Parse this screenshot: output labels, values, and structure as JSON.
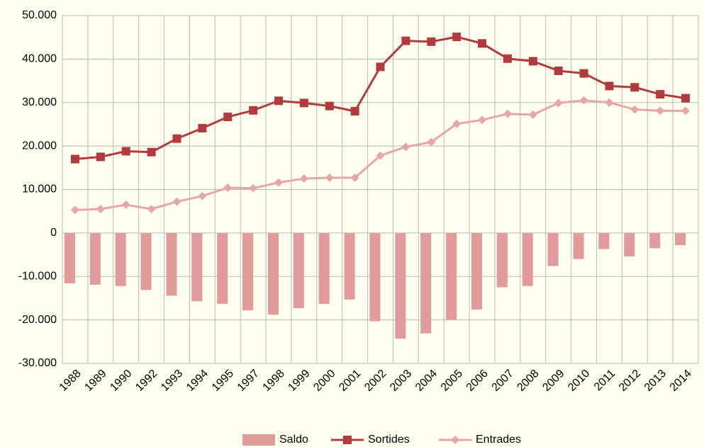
{
  "chart_data": {
    "type": "combo",
    "categories": [
      "1988",
      "1989",
      "1990",
      "1992",
      "1993",
      "1994",
      "1995",
      "1997",
      "1998",
      "1999",
      "2000",
      "2001",
      "2002",
      "2003",
      "2004",
      "2005",
      "2006",
      "2007",
      "2008",
      "2009",
      "2010",
      "2011",
      "2012",
      "2013",
      "2014"
    ],
    "series": [
      {
        "name": "Saldo",
        "type": "bar",
        "color": "#e29b9b",
        "values": [
          -11600,
          -11900,
          -12200,
          -13100,
          -14400,
          -15700,
          -16300,
          -17800,
          -18800,
          -17300,
          -16300,
          -15300,
          -20300,
          -24300,
          -23100,
          -19900,
          -17600,
          -12500,
          -12200,
          -7600,
          -6000,
          -3700,
          -5400,
          -3500,
          -2800
        ]
      },
      {
        "name": "Sortides",
        "type": "line",
        "marker": "square",
        "color": "#b23a3c",
        "values": [
          17000,
          17500,
          18800,
          18600,
          21700,
          24100,
          26700,
          28200,
          30400,
          29900,
          29200,
          28000,
          38200,
          44200,
          44000,
          45100,
          43600,
          40100,
          39500,
          37300,
          36700,
          33800,
          33500,
          31900,
          31000
        ]
      },
      {
        "name": "Entrades",
        "type": "line",
        "marker": "diamond",
        "color": "#e8a5a5",
        "values": [
          5300,
          5500,
          6500,
          5500,
          7200,
          8500,
          10400,
          10300,
          11600,
          12500,
          12700,
          12700,
          17800,
          19800,
          20900,
          25100,
          26000,
          27400,
          27200,
          29900,
          30500,
          30000,
          28400,
          28100,
          28100
        ]
      }
    ],
    "ylim": [
      -30000,
      50000
    ],
    "yticks": [
      {
        "value": -30000,
        "label": "-30.000"
      },
      {
        "value": -20000,
        "label": "-20.000"
      },
      {
        "value": -10000,
        "label": "-10.000"
      },
      0,
      {
        "value": 10000,
        "label": "10.000"
      },
      {
        "value": 20000,
        "label": "20.000"
      },
      {
        "value": 30000,
        "label": "30.000"
      },
      {
        "value": 40000,
        "label": "40.000"
      },
      {
        "value": 50000,
        "label": "50.000"
      }
    ],
    "grid": true,
    "legend": "bottom"
  }
}
